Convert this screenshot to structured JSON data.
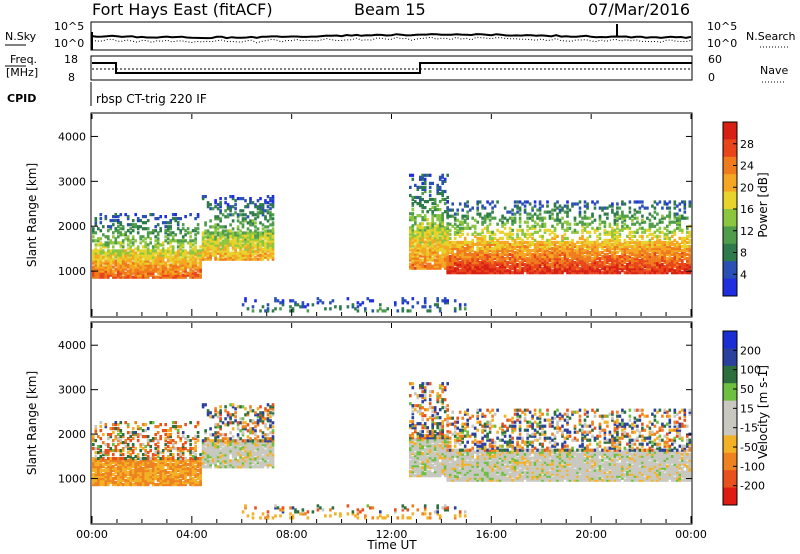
{
  "header": {
    "station": "Fort Hays East (fitACF)",
    "beam": "Beam 15",
    "date": "07/Mar/2016"
  },
  "top_panels": {
    "nsky_label": "N.Sky",
    "nsky_ticks": [
      "10^5",
      "10^0"
    ],
    "nsearch_label": "N.Search",
    "nsearch_ticks": [
      "10^5",
      "10^0"
    ],
    "freq_label_1": "Freq.",
    "freq_label_2": "[MHz]",
    "freq_ticks": [
      "18",
      "8"
    ],
    "nave_label": "Nave",
    "nave_ticks": [
      "60",
      "0"
    ],
    "cpid_label": "CPID",
    "cpid_value": "rbsp CT-trig 220 IF"
  },
  "x_axis": {
    "label": "Time UT",
    "ticks": [
      "00:00",
      "04:00",
      "08:00",
      "12:00",
      "16:00",
      "20:00",
      "00:00"
    ]
  },
  "colors": {
    "power": [
      "#1f2fe0",
      "#2a50b5",
      "#2f7a4a",
      "#4f9c4a",
      "#8cc63f",
      "#e7d32b",
      "#f5a623",
      "#ef7b1c",
      "#e8451b",
      "#d71f13"
    ],
    "velocity": [
      "#1a2ed4",
      "#2a3f9e",
      "#2c6f3c",
      "#6cbf3f",
      "#c8c8c0",
      "#c8c8c0",
      "#f3b126",
      "#ee8220",
      "#e8501c",
      "#e01b14"
    ]
  },
  "chart_data": [
    {
      "type": "heatmap",
      "title": "Power",
      "ylabel": "Slant Range [km]",
      "xlabel": "",
      "ylim": [
        0,
        4500
      ],
      "xlim_hours": [
        0,
        24
      ],
      "y_ticks": [
        1000,
        2000,
        3000,
        4000
      ],
      "colorbar": {
        "label": "Power [dB]",
        "ticks": [
          "28",
          "24",
          "20",
          "16",
          "12",
          "8",
          "4"
        ],
        "range": [
          0,
          30
        ]
      },
      "echo_bands": [
        {
          "t_start": 0.0,
          "t_end": 4.4,
          "r_low": 900,
          "r_high": 2300,
          "peak_power": 24
        },
        {
          "t_start": 4.4,
          "t_end": 7.2,
          "r_low": 1300,
          "r_high": 2700,
          "peak_power": 20
        },
        {
          "t_start": 12.7,
          "t_end": 14.2,
          "r_low": 1100,
          "r_high": 3200,
          "peak_power": 22
        },
        {
          "t_start": 14.2,
          "t_end": 24.0,
          "r_low": 1000,
          "r_high": 2600,
          "peak_power": 28
        },
        {
          "t_start": 6.0,
          "t_end": 15.0,
          "r_low": 150,
          "r_high": 450,
          "peak_power": 8
        }
      ]
    },
    {
      "type": "heatmap",
      "title": "Velocity",
      "ylabel": "Slant Range [km]",
      "xlabel": "Time UT",
      "ylim": [
        0,
        4500
      ],
      "xlim_hours": [
        0,
        24
      ],
      "y_ticks": [
        1000,
        2000,
        3000,
        4000
      ],
      "colorbar": {
        "label": "Velocity [m s-1]",
        "ticks": [
          "200",
          "100",
          "50",
          "15",
          "-15",
          "-50",
          "-100",
          "-200"
        ],
        "range": [
          -250,
          250
        ]
      },
      "echo_bands": [
        {
          "t_start": 0.0,
          "t_end": 4.4,
          "r_low": 900,
          "r_high": 2300,
          "velocity": -50
        },
        {
          "t_start": 4.4,
          "t_end": 7.2,
          "r_low": 1300,
          "r_high": 2700,
          "velocity": 0
        },
        {
          "t_start": 12.7,
          "t_end": 14.2,
          "r_low": 1100,
          "r_high": 3200,
          "velocity": 0
        },
        {
          "t_start": 14.2,
          "t_end": 24.0,
          "r_low": 1000,
          "r_high": 2600,
          "velocity": 0
        },
        {
          "t_start": 6.0,
          "t_end": 15.0,
          "r_low": 150,
          "r_high": 450,
          "velocity": -40
        }
      ]
    }
  ]
}
